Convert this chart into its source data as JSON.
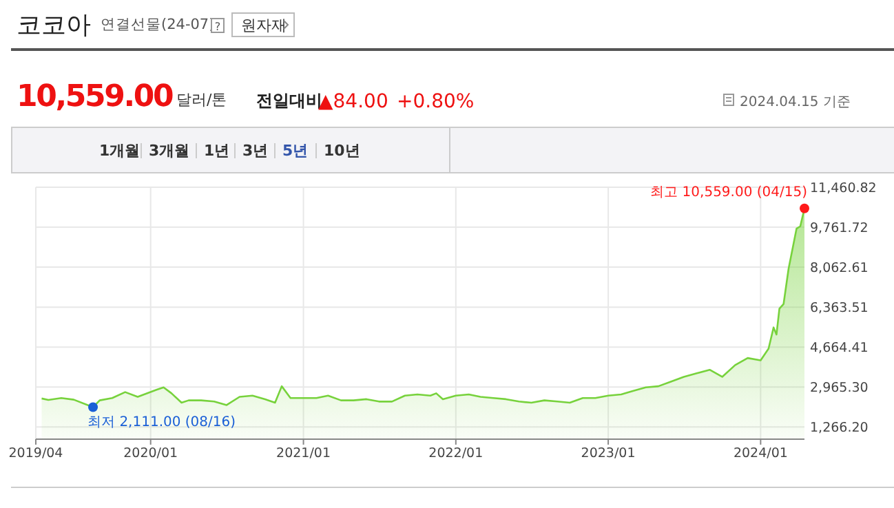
{
  "chart_data": {
    "type": "area",
    "title": "코코아",
    "subtitle": "연결선물(24-07)",
    "x": [
      "2019-04-15",
      "2019-05-01",
      "2019-06-01",
      "2019-07-01",
      "2019-08-16",
      "2019-09-01",
      "2019-10-01",
      "2019-11-01",
      "2019-12-01",
      "2020-01-15",
      "2020-02-01",
      "2020-02-20",
      "2020-03-15",
      "2020-04-01",
      "2020-05-01",
      "2020-06-01",
      "2020-07-01",
      "2020-08-01",
      "2020-09-01",
      "2020-10-01",
      "2020-10-25",
      "2020-11-10",
      "2020-12-01",
      "2021-01-01",
      "2021-02-01",
      "2021-03-01",
      "2021-04-01",
      "2021-05-01",
      "2021-06-01",
      "2021-07-01",
      "2021-08-01",
      "2021-09-01",
      "2021-10-01",
      "2021-11-01",
      "2021-11-15",
      "2021-12-01",
      "2022-01-01",
      "2022-02-01",
      "2022-03-01",
      "2022-04-01",
      "2022-05-01",
      "2022-06-01",
      "2022-07-01",
      "2022-08-01",
      "2022-09-01",
      "2022-10-01",
      "2022-11-01",
      "2022-12-01",
      "2023-01-01",
      "2023-02-01",
      "2023-03-01",
      "2023-04-01",
      "2023-05-01",
      "2023-06-01",
      "2023-07-01",
      "2023-08-01",
      "2023-09-01",
      "2023-10-01",
      "2023-11-01",
      "2023-12-01",
      "2024-01-01",
      "2024-01-20",
      "2024-02-01",
      "2024-02-08",
      "2024-02-15",
      "2024-02-25",
      "2024-03-08",
      "2024-03-27",
      "2024-04-05",
      "2024-04-15"
    ],
    "series": [
      {
        "color": "#77d23c",
        "values": [
          2480,
          2420,
          2500,
          2430,
          2111,
          2400,
          2500,
          2750,
          2550,
          2850,
          2950,
          2700,
          2300,
          2400,
          2400,
          2350,
          2200,
          2550,
          2600,
          2450,
          2300,
          3000,
          2500,
          2500,
          2500,
          2600,
          2400,
          2400,
          2450,
          2350,
          2350,
          2600,
          2650,
          2600,
          2700,
          2450,
          2600,
          2650,
          2550,
          2500,
          2450,
          2350,
          2300,
          2400,
          2350,
          2300,
          2500,
          2500,
          2600,
          2650,
          2800,
          2950,
          3000,
          3200,
          3400,
          3550,
          3700,
          3400,
          3900,
          4200,
          4100,
          4600,
          5500,
          5200,
          6300,
          6500,
          8000,
          9700,
          9800,
          10559
        ]
      }
    ],
    "xlim": [
      "2019-04-01",
      "2024-04-15"
    ],
    "xticks": [
      {
        "value": "2019-04-01",
        "label": "2019/04"
      },
      {
        "value": "2020-01-01",
        "label": "2020/01"
      },
      {
        "value": "2021-01-01",
        "label": "2021/01"
      },
      {
        "value": "2022-01-01",
        "label": "2022/01"
      },
      {
        "value": "2023-01-01",
        "label": "2023/01"
      },
      {
        "value": "2024-01-01",
        "label": "2024/01"
      }
    ],
    "ylim": [
      750,
      11460.82
    ],
    "yticks": [
      {
        "value": 1266.2,
        "label": "1,266.20"
      },
      {
        "value": 2965.3,
        "label": "2,965.30"
      },
      {
        "value": 4664.41,
        "label": "4,664.41"
      },
      {
        "value": 6363.51,
        "label": "6,363.51"
      },
      {
        "value": 8062.61,
        "label": "8,062.61"
      },
      {
        "value": 9761.72,
        "label": "9,761.72"
      },
      {
        "value": 11460.82,
        "label": "11,460.82"
      }
    ],
    "grid": true,
    "annotations": [
      "원자재",
      "10,559.00",
      "달러/톤",
      "전일대비",
      "▲84.00",
      "+0.80%",
      "2024.04.15 기준",
      "1개월",
      "3개월",
      "1년",
      "3년",
      "5년",
      "10년",
      "?",
      {
        "text": "최저 2,111.00 (08/16)",
        "x": "2019-08-16",
        "y": 2111
      },
      {
        "text": "최고 10,559.00 (04/15)",
        "x": "2024-04-15",
        "y": 10559
      }
    ]
  }
}
